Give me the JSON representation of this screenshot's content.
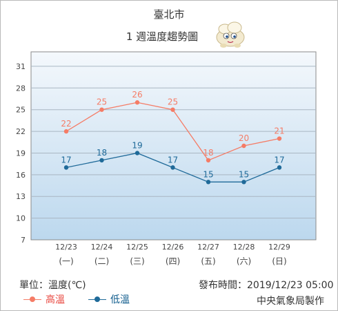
{
  "header": {
    "title": "臺北市",
    "subtitle": "1 週溫度趨勢圖"
  },
  "footer": {
    "unit": "單位：溫度(℃)",
    "issued": "發布時間：2019/12/23 05:00",
    "agency": "中央氣象局製作"
  },
  "colors": {
    "high": "#f57c66",
    "low": "#1f6a99",
    "plot_top": "#f4f8fc",
    "plot_bottom": "#bcd8ee"
  },
  "mascot_icon": "cloud-mascot-icon",
  "chart_data": {
    "type": "line",
    "categories": [
      "12/23",
      "12/24",
      "12/25",
      "12/26",
      "12/27",
      "12/28",
      "12/29"
    ],
    "weekdays": [
      "(一)",
      "(二)",
      "(三)",
      "(四)",
      "(五)",
      "(六)",
      "(日)"
    ],
    "series": [
      {
        "name": "高溫",
        "values": [
          22,
          25,
          26,
          25,
          18,
          20,
          21
        ]
      },
      {
        "name": "低溫",
        "values": [
          17,
          18,
          19,
          17,
          15,
          15,
          17
        ]
      }
    ],
    "yticks": [
      7,
      10,
      13,
      16,
      19,
      22,
      25,
      28,
      31
    ],
    "ylim": [
      7,
      33
    ],
    "grid": true,
    "legend": "bottom-left"
  }
}
